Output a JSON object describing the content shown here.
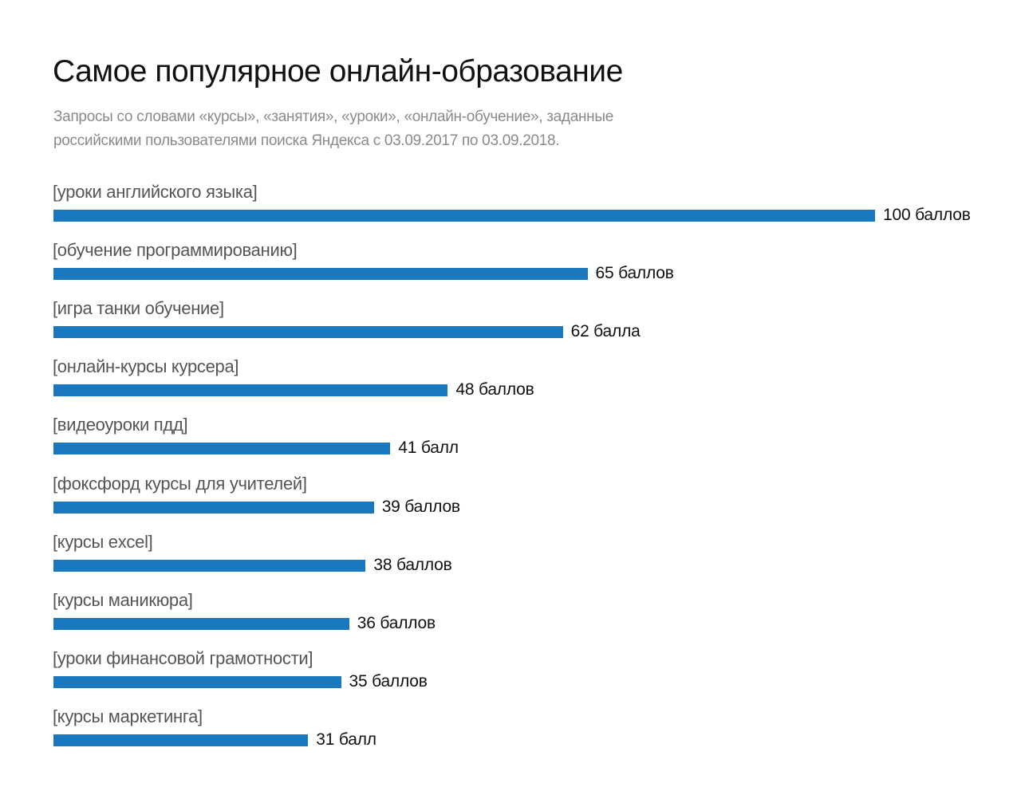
{
  "chart_data": {
    "type": "bar",
    "orientation": "horizontal",
    "title": "Самое популярное онлайн-образование",
    "subtitle": "Запросы со словами «курсы», «занятия», «уроки», «онлайн-обучение», заданные российскими пользователями поиска Яндекса с 03.09.2017 по 03.09.2018.",
    "categories": [
      "[уроки английского языка]",
      "[обучение программированию]",
      "[игра танки обучение]",
      "[онлайн-курсы курсера]",
      "[видеоуроки пдд]",
      "[фоксфорд курсы для учителей]",
      "[курсы excel]",
      "[курсы маникюра]",
      "[уроки финансовой грамотности]",
      "[курсы маркетинга]"
    ],
    "values": [
      100,
      65,
      62,
      48,
      41,
      39,
      38,
      36,
      35,
      31
    ],
    "value_labels": [
      "100 баллов",
      "65 баллов",
      "62 балла",
      "48 баллов",
      "41 балл",
      "39 баллов",
      "38 баллов",
      "36 баллов",
      "35 баллов",
      "31 балл"
    ],
    "xlim": [
      0,
      100
    ],
    "grid": false,
    "bar_color": "#1a78c0"
  }
}
